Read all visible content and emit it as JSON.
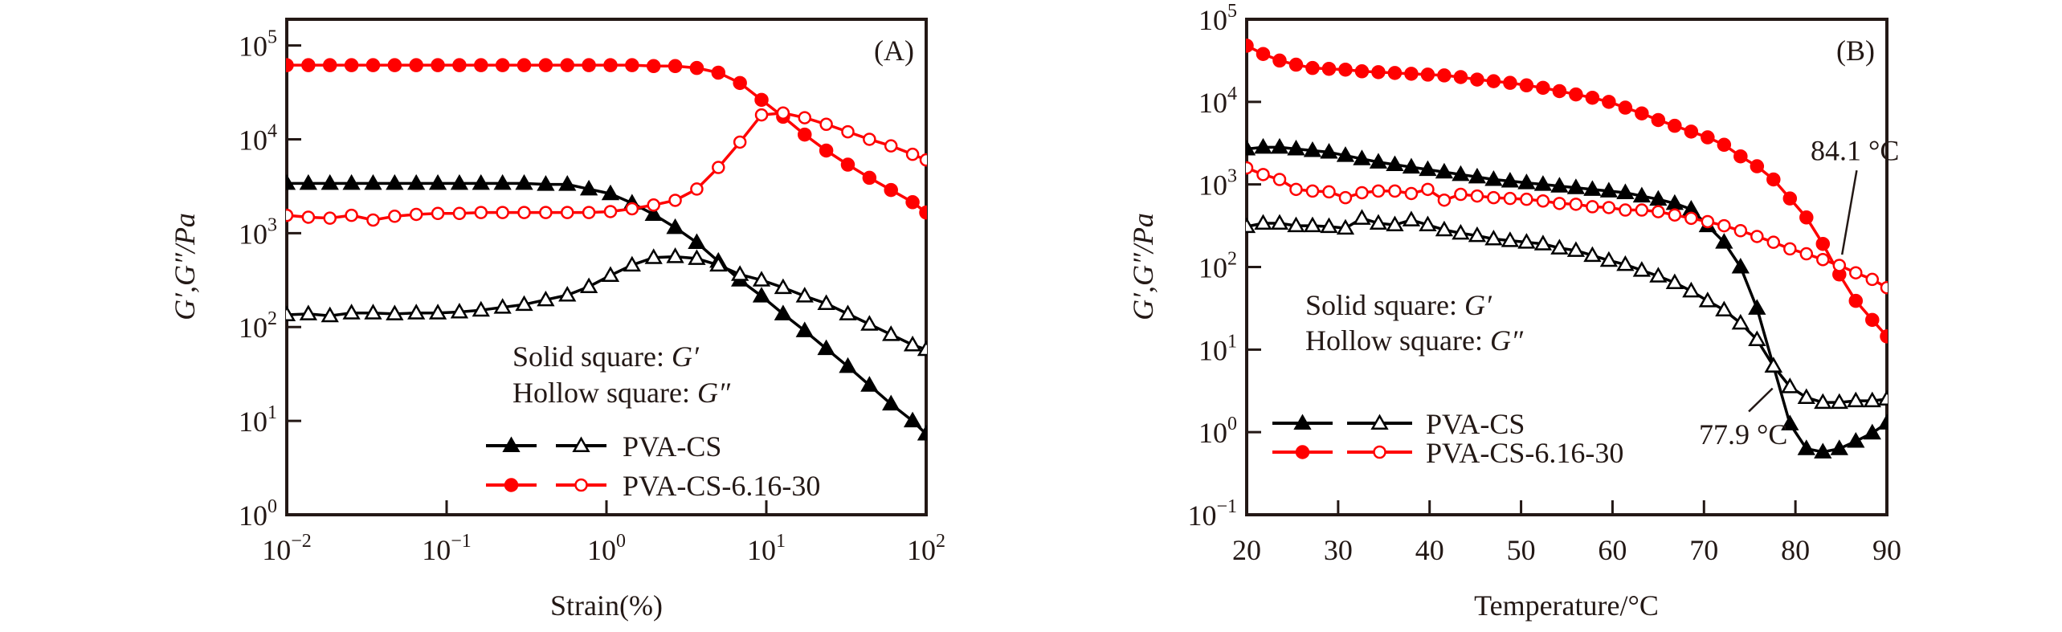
{
  "chart_data": [
    {
      "id": "A",
      "type": "line",
      "panel_label": "(A)",
      "xlabel": "Strain(%)",
      "ylabel": "G′,G″/Pa",
      "xscale": "log",
      "yscale": "log",
      "xlim": [
        0.01,
        100
      ],
      "ylim": [
        1,
        190000
      ],
      "xticks": [
        {
          "base": "10",
          "exp": "−2",
          "value": 0.01
        },
        {
          "base": "10",
          "exp": "−1",
          "value": 0.1
        },
        {
          "base": "10",
          "exp": "0",
          "value": 1
        },
        {
          "base": "10",
          "exp": "1",
          "value": 10
        },
        {
          "base": "10",
          "exp": "2",
          "value": 100
        }
      ],
      "yticks": [
        {
          "base": "10",
          "exp": "0",
          "value": 1
        },
        {
          "base": "10",
          "exp": "1",
          "value": 10
        },
        {
          "base": "10",
          "exp": "2",
          "value": 100
        },
        {
          "base": "10",
          "exp": "3",
          "value": 1000
        },
        {
          "base": "10",
          "exp": "4",
          "value": 10000
        },
        {
          "base": "10",
          "exp": "5",
          "value": 100000
        }
      ],
      "grid": false,
      "note_lines": [
        {
          "prefix": "Solid square: ",
          "symbol": "G′"
        },
        {
          "prefix": "Hollow square: ",
          "symbol": "G″"
        }
      ],
      "legend": [
        {
          "label": "PVA-CS",
          "color": "#000000",
          "markers": [
            "triangle-filled",
            "triangle-open"
          ]
        },
        {
          "label": "PVA-CS-6.16-30",
          "color": "#ff0000",
          "markers": [
            "circle-filled",
            "circle-open"
          ]
        }
      ],
      "legend_position": "bottom-center",
      "series": [
        {
          "name": "PVA-CS G′",
          "color": "#000000",
          "marker": "triangle",
          "filled": true,
          "x_log10": [
            -2,
            -1.865,
            -1.73,
            -1.595,
            -1.46,
            -1.325,
            -1.19,
            -1.055,
            -0.92,
            -0.785,
            -0.65,
            -0.515,
            -0.38,
            -0.245,
            -0.11,
            0.025,
            0.16,
            0.295,
            0.43,
            0.565,
            0.7,
            0.835,
            0.97,
            1.105,
            1.24,
            1.375,
            1.51,
            1.645,
            1.78,
            1.915,
            2.0
          ],
          "y_log10": [
            3.53,
            3.53,
            3.53,
            3.53,
            3.53,
            3.53,
            3.53,
            3.53,
            3.53,
            3.53,
            3.53,
            3.53,
            3.52,
            3.52,
            3.47,
            3.42,
            3.32,
            3.2,
            3.06,
            2.9,
            2.7,
            2.5,
            2.33,
            2.14,
            1.96,
            1.77,
            1.58,
            1.38,
            1.18,
            1.0,
            0.86
          ]
        },
        {
          "name": "PVA-CS G″",
          "color": "#000000",
          "marker": "triangle",
          "filled": false,
          "x_log10": [
            -2,
            -1.865,
            -1.73,
            -1.595,
            -1.46,
            -1.325,
            -1.19,
            -1.055,
            -0.92,
            -0.785,
            -0.65,
            -0.515,
            -0.38,
            -0.245,
            -0.11,
            0.025,
            0.16,
            0.295,
            0.43,
            0.565,
            0.7,
            0.835,
            0.97,
            1.105,
            1.24,
            1.375,
            1.51,
            1.645,
            1.78,
            1.915,
            2.0
          ],
          "y_log10": [
            2.13,
            2.14,
            2.12,
            2.15,
            2.15,
            2.14,
            2.15,
            2.15,
            2.16,
            2.18,
            2.21,
            2.24,
            2.29,
            2.34,
            2.43,
            2.55,
            2.66,
            2.74,
            2.75,
            2.73,
            2.66,
            2.56,
            2.5,
            2.42,
            2.33,
            2.25,
            2.14,
            2.03,
            1.92,
            1.81,
            1.76
          ]
        },
        {
          "name": "PVA-CS-6.16-30 G′",
          "color": "#ff0000",
          "marker": "circle",
          "filled": true,
          "x_log10": [
            -2,
            -1.865,
            -1.73,
            -1.595,
            -1.46,
            -1.325,
            -1.19,
            -1.055,
            -0.92,
            -0.785,
            -0.65,
            -0.515,
            -0.38,
            -0.245,
            -0.11,
            0.025,
            0.16,
            0.295,
            0.43,
            0.565,
            0.7,
            0.835,
            0.97,
            1.105,
            1.24,
            1.375,
            1.51,
            1.645,
            1.78,
            1.915,
            2.0
          ],
          "y_log10": [
            4.79,
            4.79,
            4.79,
            4.79,
            4.79,
            4.79,
            4.79,
            4.79,
            4.79,
            4.79,
            4.79,
            4.79,
            4.79,
            4.79,
            4.79,
            4.79,
            4.79,
            4.78,
            4.78,
            4.76,
            4.71,
            4.6,
            4.42,
            4.24,
            4.05,
            3.88,
            3.73,
            3.59,
            3.46,
            3.33,
            3.22
          ]
        },
        {
          "name": "PVA-CS-6.16-30 G″",
          "color": "#ff0000",
          "marker": "circle",
          "filled": false,
          "x_log10": [
            -2,
            -1.865,
            -1.73,
            -1.595,
            -1.46,
            -1.325,
            -1.19,
            -1.055,
            -0.92,
            -0.785,
            -0.65,
            -0.515,
            -0.38,
            -0.245,
            -0.11,
            0.025,
            0.16,
            0.295,
            0.43,
            0.565,
            0.7,
            0.835,
            0.97,
            1.105,
            1.24,
            1.375,
            1.51,
            1.645,
            1.78,
            1.915,
            2.0
          ],
          "y_log10": [
            3.19,
            3.17,
            3.16,
            3.19,
            3.14,
            3.18,
            3.2,
            3.21,
            3.21,
            3.22,
            3.22,
            3.22,
            3.22,
            3.22,
            3.22,
            3.23,
            3.26,
            3.3,
            3.35,
            3.47,
            3.7,
            3.97,
            4.26,
            4.28,
            4.23,
            4.16,
            4.08,
            4.0,
            3.93,
            3.84,
            3.78
          ]
        }
      ]
    },
    {
      "id": "B",
      "type": "line",
      "panel_label": "(B)",
      "xlabel": "Temperature/°C",
      "ylabel": "G′,G″/Pa",
      "xscale": "linear",
      "yscale": "log",
      "xlim": [
        20,
        90
      ],
      "ylim": [
        0.1,
        100000
      ],
      "xticks": [
        {
          "base": "20",
          "exp": "",
          "value": 20
        },
        {
          "base": "30",
          "exp": "",
          "value": 30
        },
        {
          "base": "40",
          "exp": "",
          "value": 40
        },
        {
          "base": "50",
          "exp": "",
          "value": 50
        },
        {
          "base": "60",
          "exp": "",
          "value": 60
        },
        {
          "base": "70",
          "exp": "",
          "value": 70
        },
        {
          "base": "80",
          "exp": "",
          "value": 80
        },
        {
          "base": "90",
          "exp": "",
          "value": 90
        }
      ],
      "yticks": [
        {
          "base": "10",
          "exp": "−1",
          "value": 0.1
        },
        {
          "base": "10",
          "exp": "0",
          "value": 1
        },
        {
          "base": "10",
          "exp": "1",
          "value": 10
        },
        {
          "base": "10",
          "exp": "2",
          "value": 100
        },
        {
          "base": "10",
          "exp": "3",
          "value": 1000
        },
        {
          "base": "10",
          "exp": "4",
          "value": 10000
        },
        {
          "base": "10",
          "exp": "5",
          "value": 100000
        }
      ],
      "grid": false,
      "note_lines": [
        {
          "prefix": "Solid square: ",
          "symbol": "G′"
        },
        {
          "prefix": "Hollow square: ",
          "symbol": "G″"
        }
      ],
      "legend": [
        {
          "label": "PVA-CS",
          "color": "#000000",
          "markers": [
            "triangle-filled",
            "triangle-open"
          ]
        },
        {
          "label": "PVA-CS-6.16-30",
          "color": "#ff0000",
          "markers": [
            "circle-filled",
            "circle-open"
          ]
        }
      ],
      "legend_position": "bottom-left",
      "annotations": [
        {
          "text": "84.1 °C",
          "x": 86.5,
          "y_log10": 3.42,
          "line_from": [
            85.1,
            2.15
          ],
          "line_to": [
            86.7,
            3.17
          ]
        },
        {
          "text": "77.9 °C",
          "x": 74.3,
          "y_log10": -0.02,
          "line_from": [
            77.5,
            0.53
          ],
          "line_to": [
            74.9,
            0.25
          ]
        }
      ],
      "series": [
        {
          "name": "PVA-CS G′",
          "color": "#000000",
          "marker": "triangle",
          "filled": true,
          "x": [
            20,
            21.8,
            23.6,
            25.4,
            27.2,
            29,
            30.8,
            32.6,
            34.4,
            36.2,
            38,
            39.8,
            41.6,
            43.4,
            45.2,
            47,
            48.8,
            50.6,
            52.4,
            54.2,
            56,
            57.8,
            59.6,
            61.4,
            63.2,
            65,
            66.8,
            68.6,
            70.4,
            72.2,
            74,
            75.8,
            77.6,
            79.4,
            81.2,
            83,
            84.8,
            86.6,
            88.4,
            90
          ],
          "y_log10": [
            3.43,
            3.45,
            3.45,
            3.43,
            3.41,
            3.39,
            3.35,
            3.31,
            3.27,
            3.24,
            3.21,
            3.18,
            3.15,
            3.12,
            3.09,
            3.06,
            3.04,
            3.02,
            3.0,
            2.98,
            2.96,
            2.94,
            2.92,
            2.9,
            2.86,
            2.82,
            2.77,
            2.7,
            2.5,
            2.3,
            2.0,
            1.5,
            0.8,
            0.1,
            -0.2,
            -0.24,
            -0.2,
            -0.11,
            -0.01,
            0.11
          ]
        },
        {
          "name": "PVA-CS G″",
          "color": "#000000",
          "marker": "triangle",
          "filled": false,
          "x": [
            20,
            21.8,
            23.6,
            25.4,
            27.2,
            29,
            30.8,
            32.6,
            34.4,
            36.2,
            38,
            39.8,
            41.6,
            43.4,
            45.2,
            47,
            48.8,
            50.6,
            52.4,
            54.2,
            56,
            57.8,
            59.6,
            61.4,
            63.2,
            65,
            66.8,
            68.6,
            70.4,
            72.2,
            74,
            75.8,
            77.6,
            79.4,
            81.2,
            83,
            84.8,
            86.6,
            88.4,
            90
          ],
          "y_log10": [
            2.49,
            2.53,
            2.53,
            2.5,
            2.5,
            2.49,
            2.47,
            2.59,
            2.53,
            2.51,
            2.57,
            2.51,
            2.45,
            2.41,
            2.38,
            2.34,
            2.32,
            2.3,
            2.28,
            2.23,
            2.2,
            2.14,
            2.08,
            2.03,
            1.96,
            1.89,
            1.81,
            1.71,
            1.59,
            1.48,
            1.32,
            1.12,
            0.8,
            0.55,
            0.42,
            0.36,
            0.36,
            0.38,
            0.38,
            0.4
          ]
        },
        {
          "name": "PVA-CS-6.16-30 G′",
          "color": "#ff0000",
          "marker": "circle",
          "filled": true,
          "x": [
            20,
            21.8,
            23.6,
            25.4,
            27.2,
            29,
            30.8,
            32.6,
            34.4,
            36.2,
            38,
            39.8,
            41.6,
            43.4,
            45.2,
            47,
            48.8,
            50.6,
            52.4,
            54.2,
            56,
            57.8,
            59.6,
            61.4,
            63.2,
            65,
            66.8,
            68.6,
            70.4,
            72.2,
            74,
            75.8,
            77.6,
            79.4,
            81.2,
            83,
            84.8,
            86.6,
            88.4,
            90
          ],
          "y_log10": [
            4.68,
            4.58,
            4.5,
            4.45,
            4.41,
            4.4,
            4.39,
            4.37,
            4.36,
            4.35,
            4.34,
            4.33,
            4.32,
            4.3,
            4.27,
            4.25,
            4.23,
            4.2,
            4.17,
            4.13,
            4.09,
            4.05,
            4.0,
            3.93,
            3.86,
            3.78,
            3.71,
            3.64,
            3.57,
            3.48,
            3.34,
            3.22,
            3.06,
            2.83,
            2.6,
            2.28,
            1.91,
            1.59,
            1.36,
            1.16
          ]
        },
        {
          "name": "PVA-CS-6.16-30 G″",
          "color": "#ff0000",
          "marker": "circle",
          "filled": false,
          "x": [
            20,
            21.8,
            23.6,
            25.4,
            27.2,
            29,
            30.8,
            32.6,
            34.4,
            36.2,
            38,
            39.8,
            41.6,
            43.4,
            45.2,
            47,
            48.8,
            50.6,
            52.4,
            54.2,
            56,
            57.8,
            59.6,
            61.4,
            63.2,
            65,
            66.8,
            68.6,
            70.4,
            72.2,
            74,
            75.8,
            77.6,
            79.4,
            81.2,
            83,
            84.8,
            86.6,
            88.4,
            90
          ],
          "y_log10": [
            3.2,
            3.12,
            3.06,
            2.94,
            2.92,
            2.91,
            2.84,
            2.9,
            2.92,
            2.92,
            2.89,
            2.94,
            2.81,
            2.88,
            2.86,
            2.84,
            2.83,
            2.82,
            2.8,
            2.77,
            2.76,
            2.73,
            2.72,
            2.69,
            2.69,
            2.67,
            2.63,
            2.59,
            2.55,
            2.5,
            2.44,
            2.37,
            2.3,
            2.22,
            2.16,
            2.09,
            2.02,
            1.93,
            1.85,
            1.75
          ]
        }
      ]
    }
  ]
}
